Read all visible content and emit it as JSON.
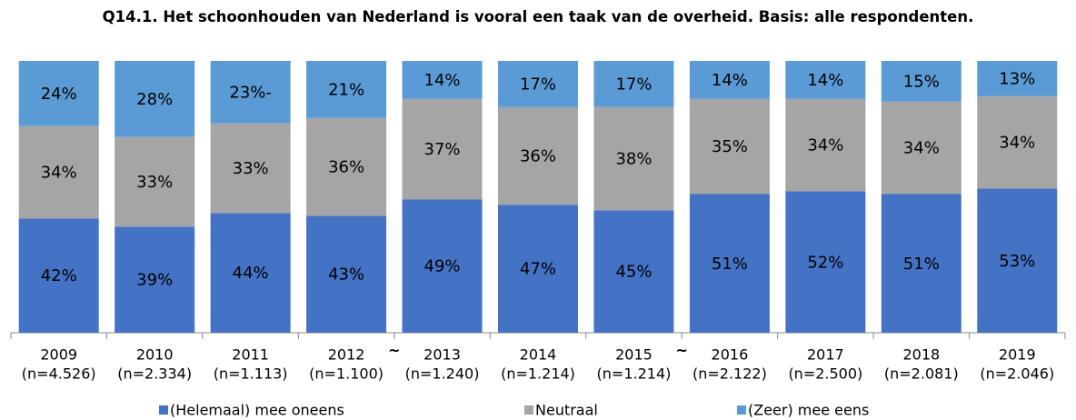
{
  "chart_data": {
    "type": "stacked_bar",
    "title": "Q14.1. Het schoonhouden van Nederland is vooral een taak van de overheid. Basis: alle respondenten.",
    "categories": [
      "2009",
      "2010",
      "2011",
      "2012",
      "2013",
      "2014",
      "2015",
      "2016",
      "2017",
      "2018",
      "2019"
    ],
    "category_sublabels": [
      "(n=4.526)",
      "(n=2.334)",
      "(n=1.113)",
      "(n=1.100)",
      "(n=1.240)",
      "(n=1.214)",
      "(n=1.214)",
      "(n=2.122)",
      "(n=2.500)",
      "(n=2.081)",
      "(n=2.046)"
    ],
    "annotations": [
      {
        "text": "~",
        "between": [
          "2012",
          "2013"
        ]
      },
      {
        "text": "~",
        "between": [
          "2015",
          "2016"
        ]
      }
    ],
    "ylim": [
      0,
      100
    ],
    "legend": "bottom",
    "series": [
      {
        "name": "(Helemaal) mee oneens",
        "color": "#4472c4",
        "values": [
          42,
          39,
          44,
          43,
          49,
          47,
          45,
          51,
          52,
          51,
          53
        ],
        "value_labels": [
          "42%",
          "39%",
          "44%",
          "43%",
          "49%",
          "47%",
          "45%",
          "51%",
          "52%",
          "51%",
          "53%"
        ]
      },
      {
        "name": "Neutraal",
        "color": "#a5a5a5",
        "values": [
          34,
          33,
          33,
          36,
          37,
          36,
          38,
          35,
          34,
          34,
          34
        ],
        "value_labels": [
          "34%",
          "33%",
          "33%",
          "36%",
          "37%",
          "36%",
          "38%",
          "35%",
          "34%",
          "34%",
          "34%"
        ]
      },
      {
        "name": "(Zeer) mee eens",
        "color": "#5b9bd5",
        "values": [
          24,
          28,
          23,
          21,
          14,
          17,
          17,
          14,
          14,
          15,
          13
        ],
        "value_labels": [
          "24%",
          "28%",
          "23%-",
          "21%",
          "14%",
          "17%",
          "17%",
          "14%",
          "14%",
          "15%",
          "13%"
        ]
      }
    ]
  }
}
